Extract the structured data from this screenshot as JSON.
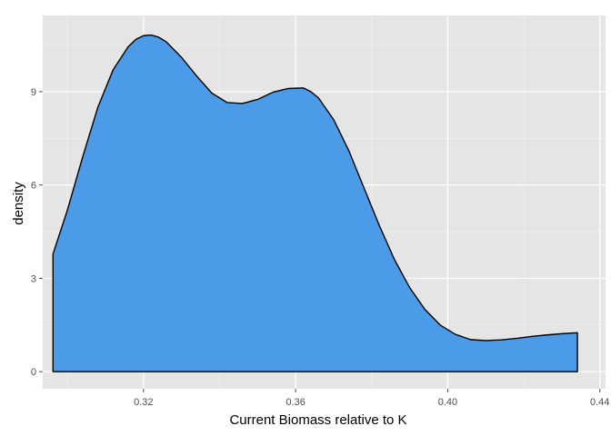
{
  "chart_data": {
    "type": "area",
    "title": "",
    "xlabel": "Current Biomass relative to K",
    "ylabel": "density",
    "xlim": [
      0.2935,
      0.4415
    ],
    "ylim": [
      -0.55,
      11.45
    ],
    "x_ticks": [
      {
        "value": 0.32,
        "label": "0.32"
      },
      {
        "value": 0.36,
        "label": "0.36"
      },
      {
        "value": 0.4,
        "label": "0.40"
      },
      {
        "value": 0.44,
        "label": "0.44"
      }
    ],
    "y_ticks": [
      {
        "value": 0,
        "label": "0"
      },
      {
        "value": 3,
        "label": "3"
      },
      {
        "value": 6,
        "label": "6"
      },
      {
        "value": 9,
        "label": "9"
      }
    ],
    "grid": true,
    "fill_color": "#4C9BE8",
    "line_color": "#000000",
    "panel_color": "#E5E5E5",
    "series": [
      {
        "x": [
          0.2962,
          0.3,
          0.304,
          0.308,
          0.312,
          0.316,
          0.318,
          0.32,
          0.322,
          0.324,
          0.326,
          0.33,
          0.334,
          0.338,
          0.342,
          0.346,
          0.35,
          0.354,
          0.358,
          0.362,
          0.364,
          0.366,
          0.37,
          0.374,
          0.378,
          0.382,
          0.386,
          0.39,
          0.394,
          0.398,
          0.402,
          0.406,
          0.41,
          0.414,
          0.418,
          0.422,
          0.426,
          0.43,
          0.4341
        ],
        "y": [
          3.78,
          5.2,
          6.9,
          8.5,
          9.7,
          10.45,
          10.68,
          10.8,
          10.82,
          10.75,
          10.6,
          10.1,
          9.5,
          8.95,
          8.65,
          8.62,
          8.75,
          8.98,
          9.1,
          9.12,
          9.0,
          8.8,
          8.1,
          7.1,
          5.9,
          4.7,
          3.6,
          2.7,
          2.0,
          1.5,
          1.2,
          1.03,
          1.0,
          1.02,
          1.07,
          1.13,
          1.18,
          1.22,
          1.25
        ]
      }
    ]
  }
}
